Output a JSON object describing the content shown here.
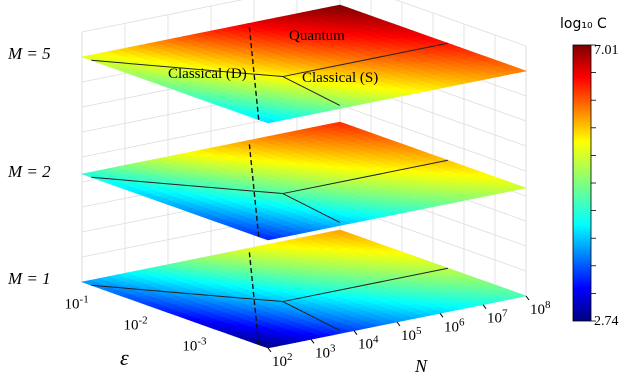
{
  "chart_data": {
    "type": "surface3d",
    "layers": [
      {
        "label": "M = 5",
        "M": 5,
        "value_min": 4.2,
        "value_max": 7.01
      },
      {
        "label": "M = 2",
        "M": 2,
        "value_min": 3.4,
        "value_max": 6.3
      },
      {
        "label": "M = 1",
        "M": 1,
        "value_min": 2.74,
        "value_max": 5.8
      }
    ],
    "regions": [
      "Quantum",
      "Classical (D)",
      "Classical (S)"
    ],
    "x_axis": {
      "label": "N",
      "ticks": [
        {
          "base": "10",
          "exp": "2"
        },
        {
          "base": "10",
          "exp": "3"
        },
        {
          "base": "10",
          "exp": "4"
        },
        {
          "base": "10",
          "exp": "5"
        },
        {
          "base": "10",
          "exp": "6"
        },
        {
          "base": "10",
          "exp": "7"
        },
        {
          "base": "10",
          "exp": "8"
        }
      ]
    },
    "y_axis": {
      "label": "ε",
      "ticks": [
        {
          "base": "10",
          "exp": "-1"
        },
        {
          "base": "10",
          "exp": "-2"
        },
        {
          "base": "10",
          "exp": "-3"
        }
      ]
    },
    "z_axis": {
      "tick_labels": [
        "M = 1",
        "M = 2",
        "M = 5"
      ]
    },
    "colorbar": {
      "title": "log₁₀ C",
      "max_label": "7.01",
      "min_label": "2.74",
      "min": 2.74,
      "max": 7.01,
      "colormap": "jet"
    },
    "grid": true
  }
}
